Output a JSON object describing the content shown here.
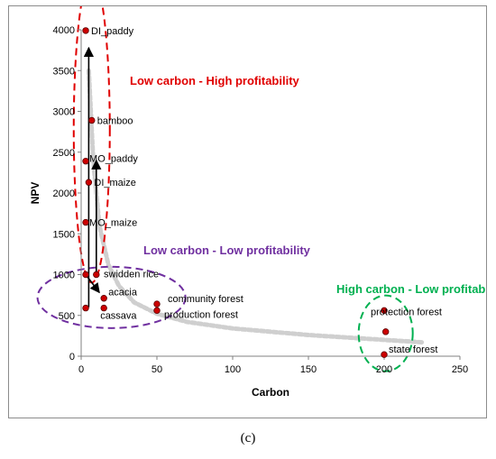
{
  "caption": "(c)",
  "colors": {
    "point": "#cc0000",
    "trend": "#cfcfcf",
    "red_region": "#e00000",
    "purple_region": "#7030a0",
    "green_region": "#00b050",
    "axis": "#000000"
  },
  "chart_data": {
    "type": "scatter",
    "xlabel": "Carbon",
    "ylabel": "NPV",
    "xlim": [
      0,
      250
    ],
    "ylim": [
      0,
      4000
    ],
    "xticks": [
      0,
      50,
      100,
      150,
      200,
      250
    ],
    "yticks": [
      0,
      500,
      1000,
      1500,
      2000,
      2500,
      3000,
      3500,
      4000
    ],
    "grid": false,
    "points": [
      {
        "label": "DI_paddy",
        "x": 3,
        "y": 3990
      },
      {
        "label": "bamboo",
        "x": 7,
        "y": 2890
      },
      {
        "label": "MO_paddy",
        "x": 3,
        "y": 2390
      },
      {
        "label": "DI_maize",
        "x": 5,
        "y": 2130
      },
      {
        "label": "MO_maize",
        "x": 3,
        "y": 1640
      },
      {
        "label": "swidden rice",
        "x": 3,
        "y": 1000
      },
      {
        "label": "",
        "x": 10,
        "y": 1000
      },
      {
        "label": "acacia",
        "x": 15,
        "y": 710
      },
      {
        "label": "cassava",
        "x": 15,
        "y": 590
      },
      {
        "label": "",
        "x": 3,
        "y": 590
      },
      {
        "label": "community forest",
        "x": 50,
        "y": 640
      },
      {
        "label": "production forest",
        "x": 50,
        "y": 560
      },
      {
        "label": "protection forest",
        "x": 200,
        "y": 560
      },
      {
        "label": "",
        "x": 201,
        "y": 300
      },
      {
        "label": "state forest",
        "x": 200,
        "y": 20
      }
    ],
    "annotations": [
      {
        "text": "Low carbon - High profitability",
        "color": "#e00000"
      },
      {
        "text": "Low carbon - Low profitability",
        "color": "#7030a0"
      },
      {
        "text": "High carbon - Low profitability",
        "color": "#00b050"
      }
    ],
    "arrows": [
      {
        "from": [
          5,
          600
        ],
        "to": [
          5,
          3780
        ]
      },
      {
        "from": [
          10,
          1000
        ],
        "to": [
          10,
          2400
        ]
      },
      {
        "from": [
          3,
          1000
        ],
        "to": [
          12,
          780
        ]
      }
    ],
    "trend": [
      [
        5,
        3500
      ],
      [
        8,
        2400
      ],
      [
        12,
        1600
      ],
      [
        18,
        1120
      ],
      [
        25,
        860
      ],
      [
        35,
        660
      ],
      [
        50,
        520
      ],
      [
        70,
        420
      ],
      [
        100,
        340
      ],
      [
        150,
        260
      ],
      [
        200,
        200
      ],
      [
        225,
        170
      ]
    ]
  }
}
